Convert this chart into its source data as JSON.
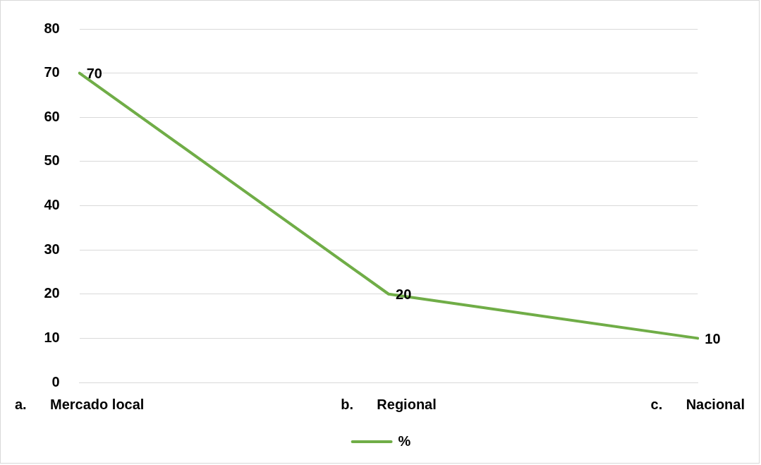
{
  "chart_data": {
    "type": "line",
    "categories": [
      "a.      Mercado local",
      "b.      Regional",
      "c.      Nacional"
    ],
    "series": [
      {
        "name": "%",
        "color": "#70ad47",
        "values": [
          70,
          20,
          10
        ]
      }
    ],
    "ylim": [
      0,
      80
    ],
    "yticks": [
      0,
      10,
      20,
      30,
      40,
      50,
      60,
      70,
      80
    ],
    "grid": "y",
    "legend": "bottom",
    "marker": "none",
    "line_style": "solid",
    "data_labels": true
  }
}
